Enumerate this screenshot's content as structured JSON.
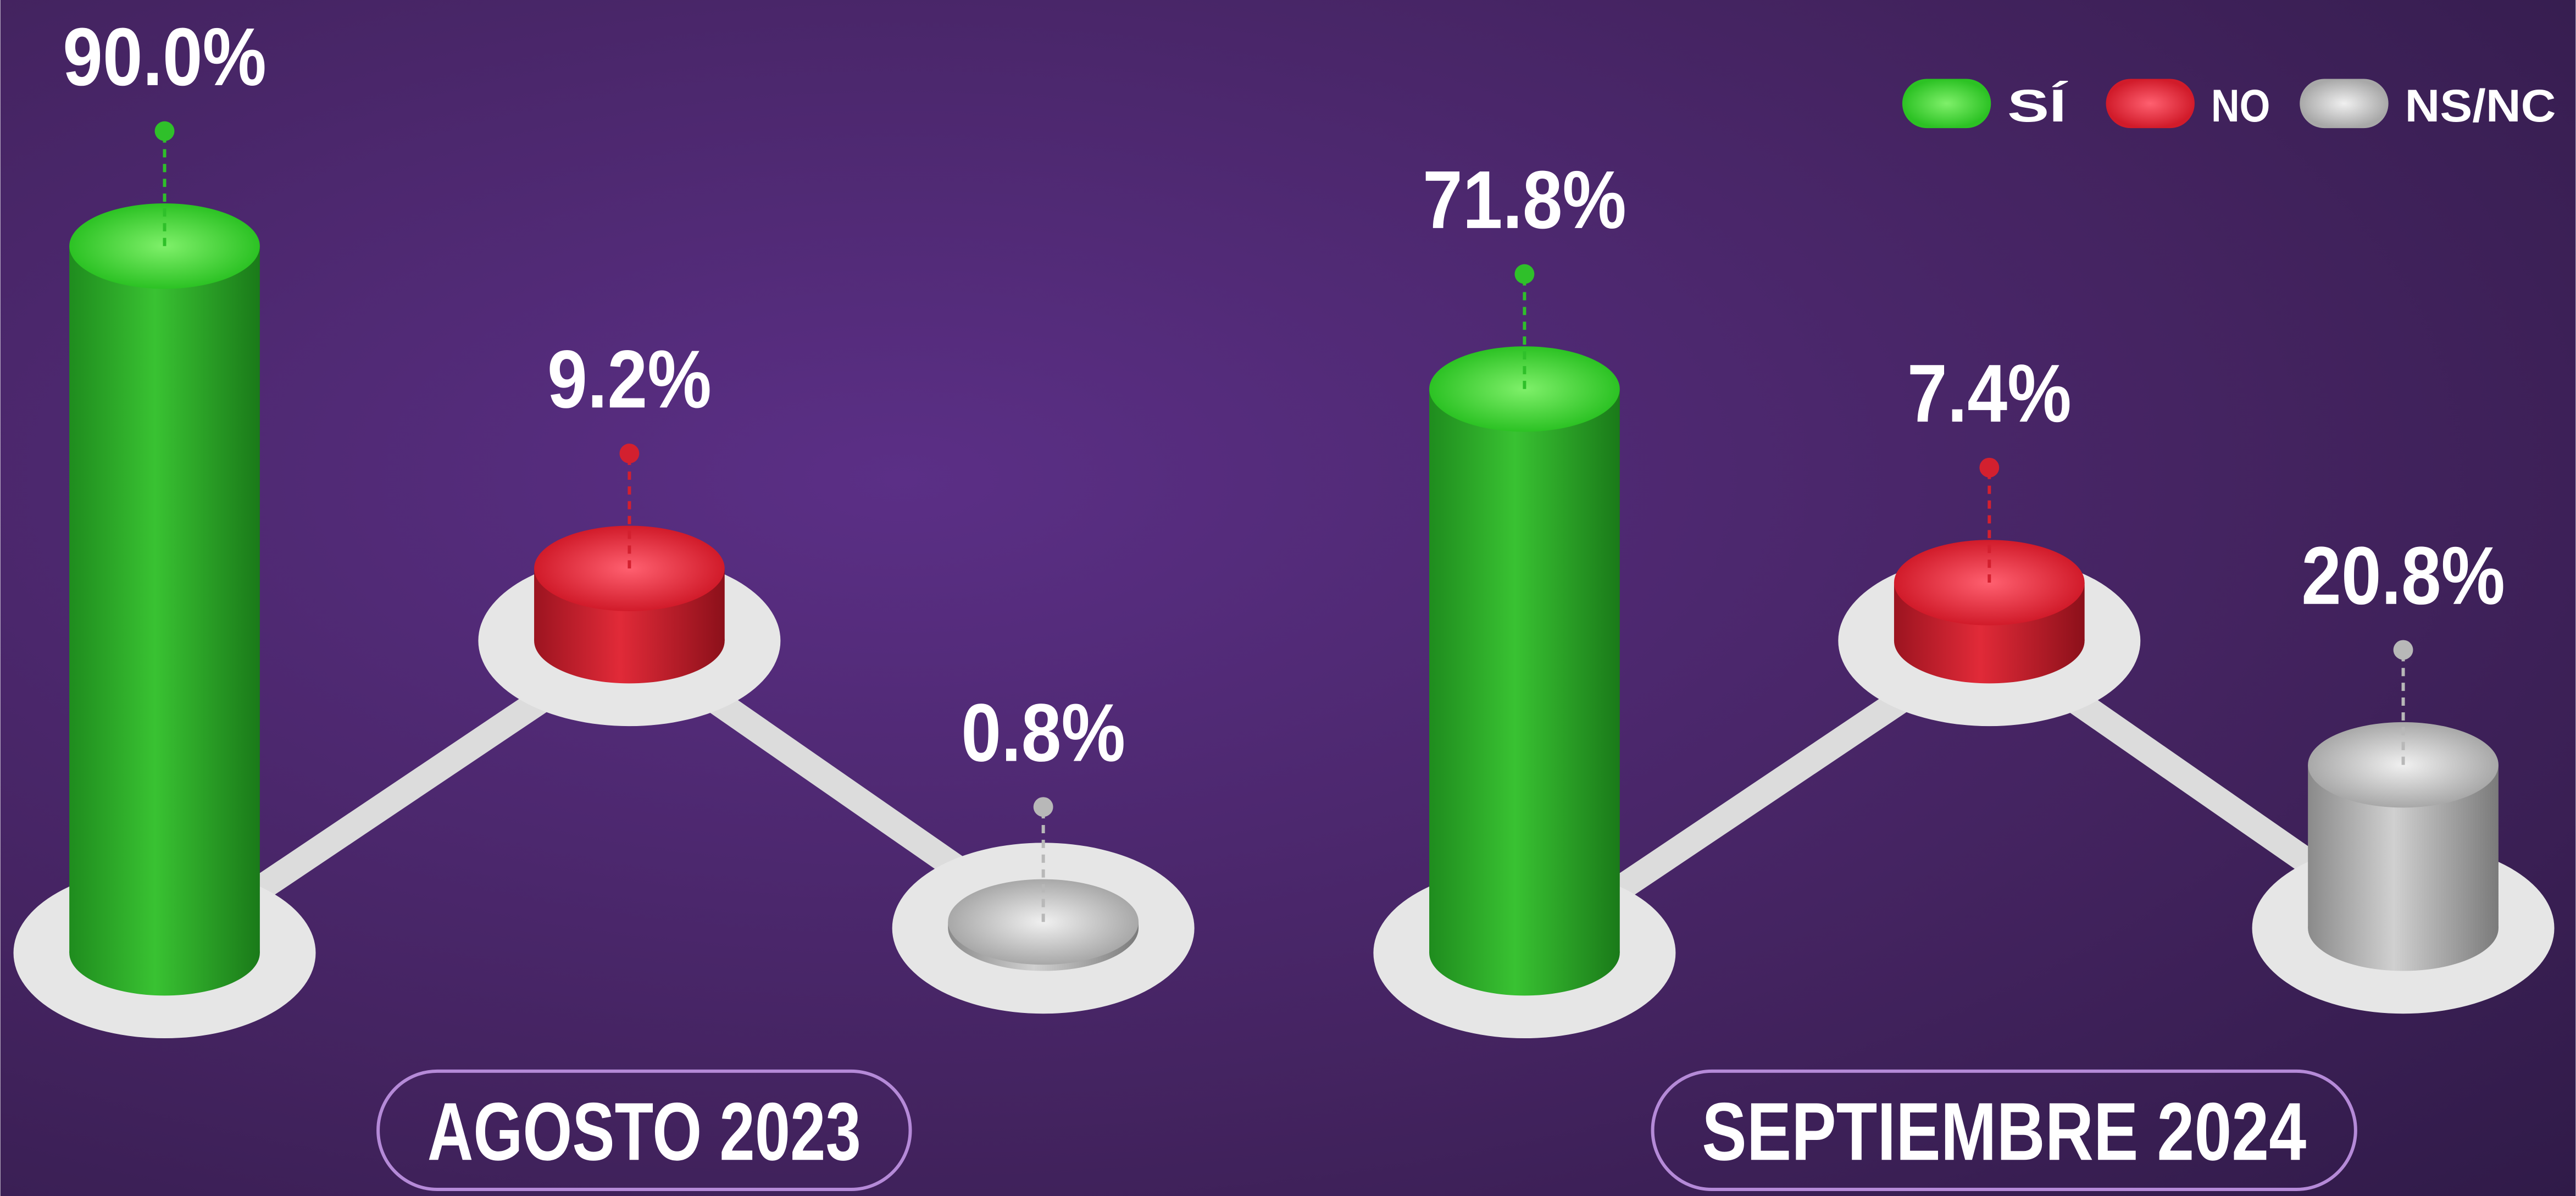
{
  "chart_data": {
    "type": "bar",
    "categories": [
      "AGOSTO 2023",
      "SEPTIEMBRE 2024"
    ],
    "series": [
      {
        "name": "SÍ",
        "color": "#2fc02a",
        "values": [
          90.0,
          71.8
        ],
        "value_labels": [
          "90.0%",
          "71.8%"
        ]
      },
      {
        "name": "NO",
        "color": "#d3202f",
        "values": [
          9.2,
          7.4
        ],
        "value_labels": [
          "9.2%",
          "7.4%"
        ]
      },
      {
        "name": "NS/NC",
        "color": "#b8b8b8",
        "values": [
          0.8,
          20.8
        ],
        "value_labels": [
          "0.8%",
          "20.8%"
        ]
      }
    ],
    "legend": "top-right"
  }
}
